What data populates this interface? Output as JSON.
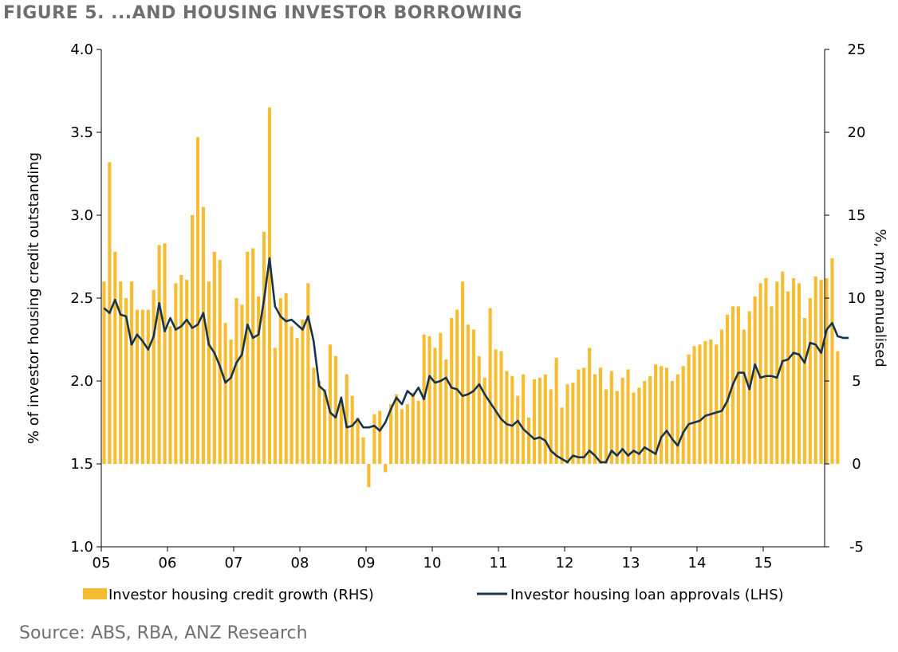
{
  "title": "FIGURE 5. ...AND HOUSING INVESTOR BORROWING",
  "source": "Source: ABS, RBA, ANZ Research",
  "colors": {
    "bars": "#f7bd32",
    "line": "#16354c",
    "title": "#6f6f6f"
  },
  "chart_data": {
    "type": "bar+line",
    "x_start": "2005-01",
    "x_ticks": [
      "05",
      "06",
      "07",
      "08",
      "09",
      "10",
      "11",
      "12",
      "13",
      "14",
      "15"
    ],
    "ylabel_left": "% of investor housing credit outstanding",
    "ylabel_right": "%, m/m annualised",
    "ylim_left": [
      1.0,
      4.0
    ],
    "ylim_right": [
      -5,
      25
    ],
    "yticks_left": [
      "1.0",
      "1.5",
      "2.0",
      "2.5",
      "3.0",
      "3.5",
      "4.0"
    ],
    "yticks_right": [
      "-5",
      "0",
      "5",
      "10",
      "15",
      "20",
      "25"
    ],
    "legend": {
      "bars": "Investor housing credit growth (RHS)",
      "line": "Investor housing loan approvals (LHS)"
    },
    "series": [
      {
        "name": "Investor housing credit growth (RHS)",
        "axis": "right",
        "kind": "bar",
        "values": [
          11.0,
          18.2,
          12.8,
          11.0,
          10.0,
          11.0,
          9.3,
          9.3,
          9.3,
          10.5,
          13.2,
          13.3,
          8.3,
          10.9,
          11.4,
          11.1,
          15.0,
          19.7,
          15.5,
          11.0,
          12.8,
          12.3,
          8.5,
          7.5,
          10.0,
          9.6,
          12.8,
          13.0,
          10.1,
          14.0,
          21.5,
          7.0,
          10.0,
          10.3,
          8.3,
          7.6,
          8.7,
          10.9,
          5.8,
          5.0,
          4.5,
          7.2,
          6.5,
          3.8,
          5.4,
          4.1,
          2.8,
          1.6,
          -1.4,
          3.0,
          3.2,
          -0.5,
          3.6,
          4.2,
          3.3,
          3.6,
          4.3,
          3.8,
          7.8,
          7.7,
          7.0,
          7.9,
          6.3,
          8.8,
          9.3,
          11.0,
          8.4,
          8.1,
          6.5,
          5.2,
          9.4,
          6.9,
          6.8,
          5.6,
          5.3,
          4.1,
          5.4,
          2.8,
          5.1,
          5.2,
          5.4,
          4.5,
          6.4,
          3.4,
          4.8,
          4.9,
          5.7,
          5.8,
          7.0,
          5.4,
          5.8,
          4.5,
          5.6,
          4.4,
          5.2,
          5.7,
          4.3,
          4.6,
          5.0,
          5.3,
          6.0,
          5.9,
          5.8,
          5.0,
          5.4,
          5.9,
          6.6,
          7.1,
          7.2,
          7.4,
          7.5,
          7.2,
          8.1,
          9.0,
          9.5,
          9.5,
          8.1,
          9.2,
          10.1,
          10.9,
          11.2,
          9.5,
          11.0,
          11.6,
          10.4,
          11.2,
          10.9,
          8.8,
          10.0,
          11.3,
          11.1,
          11.2,
          12.4,
          6.8
        ]
      },
      {
        "name": "Investor housing loan approvals (LHS)",
        "axis": "left",
        "kind": "line",
        "values": [
          2.44,
          2.41,
          2.49,
          2.4,
          2.39,
          2.22,
          2.28,
          2.24,
          2.19,
          2.27,
          2.47,
          2.3,
          2.38,
          2.31,
          2.33,
          2.37,
          2.32,
          2.34,
          2.41,
          2.22,
          2.17,
          2.09,
          1.99,
          2.02,
          2.11,
          2.16,
          2.34,
          2.26,
          2.28,
          2.49,
          2.74,
          2.45,
          2.39,
          2.36,
          2.37,
          2.34,
          2.31,
          2.39,
          2.24,
          1.97,
          1.94,
          1.81,
          1.78,
          1.9,
          1.72,
          1.73,
          1.77,
          1.72,
          1.72,
          1.73,
          1.7,
          1.75,
          1.83,
          1.9,
          1.86,
          1.94,
          1.91,
          1.96,
          1.89,
          2.03,
          1.99,
          2.0,
          2.02,
          1.96,
          1.95,
          1.91,
          1.92,
          1.94,
          1.98,
          1.92,
          1.87,
          1.82,
          1.77,
          1.74,
          1.73,
          1.76,
          1.71,
          1.68,
          1.65,
          1.66,
          1.64,
          1.58,
          1.55,
          1.53,
          1.51,
          1.55,
          1.54,
          1.54,
          1.58,
          1.55,
          1.51,
          1.51,
          1.58,
          1.55,
          1.59,
          1.55,
          1.58,
          1.56,
          1.6,
          1.58,
          1.56,
          1.66,
          1.7,
          1.65,
          1.61,
          1.69,
          1.74,
          1.75,
          1.76,
          1.79,
          1.8,
          1.81,
          1.82,
          1.88,
          1.98,
          2.05,
          2.05,
          1.95,
          2.1,
          2.02,
          2.03,
          2.03,
          2.02,
          2.12,
          2.13,
          2.17,
          2.16,
          2.11,
          2.23,
          2.22,
          2.17,
          2.31,
          2.35,
          2.27,
          2.26,
          2.26
        ]
      }
    ]
  }
}
